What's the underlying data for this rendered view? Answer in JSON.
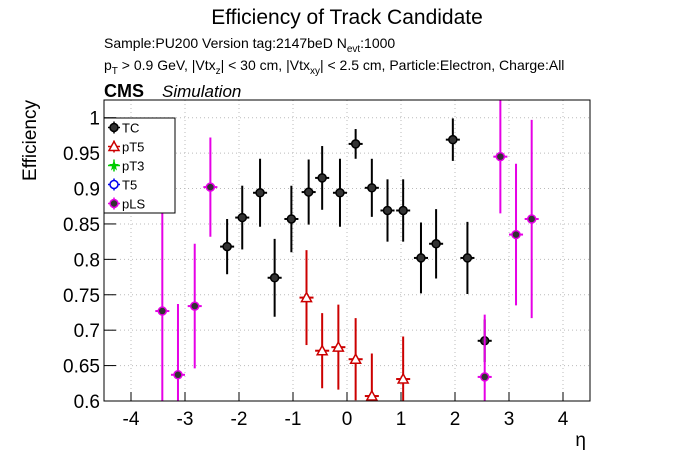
{
  "chart_data": {
    "type": "errorbar",
    "title": "Efficiency of Track Candidate",
    "info_lines": [
      [
        "Sample:PU200   Version tag:2147beD  N",
        "evt",
        ":1000"
      ],
      [
        "p",
        "T",
        " > 0.9 GeV, |Vtx",
        "z",
        "| < 30 cm, |Vtx",
        "xy",
        "| < 2.5 cm, Particle:Electron, Charge:All"
      ]
    ],
    "experiment": "CMS",
    "experiment_note": "Simulation",
    "x_label": "η",
    "y_label": "Efficiency",
    "xlim": [
      -4.5,
      4.5
    ],
    "ylim": [
      0.6,
      1.025
    ],
    "xticks": [
      -4,
      -3,
      -2,
      -1,
      0,
      1,
      2,
      3,
      4
    ],
    "yticks": [
      0.6,
      0.65,
      0.7,
      0.75,
      0.8,
      0.85,
      0.9,
      0.95,
      1
    ],
    "grid": true,
    "legend": "top-left",
    "series": [
      {
        "name": "TC",
        "color": "#000000",
        "marker": "filled-circle",
        "xerr": 0.13,
        "x": [
          -2.22,
          -1.94,
          -1.61,
          -1.34,
          -1.03,
          -0.71,
          -0.46,
          -0.13,
          0.16,
          0.46,
          0.75,
          1.04,
          1.37,
          1.65,
          1.96,
          2.23,
          2.55
        ],
        "values": [
          0.818,
          0.859,
          0.894,
          0.774,
          0.857,
          0.895,
          0.915,
          0.894,
          0.963,
          0.901,
          0.869,
          0.869,
          0.802,
          0.822,
          0.969,
          0.802,
          0.685
        ],
        "errors": [
          0.039,
          0.045,
          0.048,
          0.055,
          0.047,
          0.046,
          0.045,
          0.048,
          0.021,
          0.041,
          0.044,
          0.044,
          0.05,
          0.049,
          0.03,
          0.051,
          0.03
        ]
      },
      {
        "name": "pT5",
        "color": "#cc0000",
        "marker": "open-triangle",
        "xerr": 0.13,
        "x": [
          -0.75,
          -0.46,
          -0.16,
          0.16,
          0.46,
          1.04
        ],
        "values": [
          0.746,
          0.671,
          0.676,
          0.659,
          0.607,
          0.631
        ],
        "errors": [
          0.067,
          0.053,
          0.06,
          0.058,
          0.06,
          0.06
        ]
      },
      {
        "name": "pT3",
        "color": "#00cc00",
        "marker": "star",
        "xerr": 0.13,
        "x": [],
        "values": [],
        "errors": []
      },
      {
        "name": "T5",
        "color": "#0000ee",
        "marker": "open-circle",
        "xerr": 0.13,
        "x": [],
        "values": [],
        "errors": []
      },
      {
        "name": "pLS",
        "color": "#e600e6",
        "marker": "filled-circle",
        "xerr": 0.13,
        "x": [
          -3.42,
          -3.13,
          -2.82,
          -2.53,
          2.55,
          2.84,
          3.13,
          3.42
        ],
        "values": [
          0.727,
          0.637,
          0.734,
          0.902,
          0.634,
          0.945,
          0.835,
          0.857
        ],
        "errors": [
          0.14,
          0.1,
          0.088,
          0.07,
          0.088,
          0.08,
          0.1,
          0.14
        ]
      }
    ]
  }
}
